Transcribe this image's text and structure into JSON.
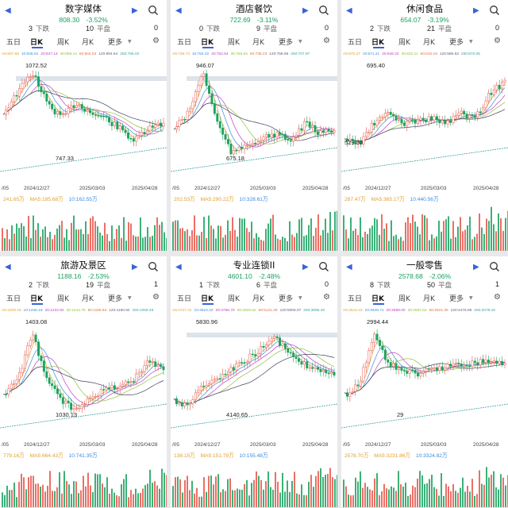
{
  "colors": {
    "up": "#e8574b",
    "down": "#1aa260",
    "ma5": "#e0a030",
    "ma10": "#3a8ce0",
    "ma20": "#c040c0",
    "ma30": "#90c040",
    "ma60": "#e07040",
    "ma120": "#606080",
    "ma250": "#40a0a0",
    "accent": "#3a62d8"
  },
  "panels": [
    {
      "name": "数字媒体",
      "price": "808.30",
      "change": "-3.52%",
      "down_count": "3",
      "down_label": "下跌",
      "flat_count": "10",
      "flat_label": "平盘",
      "right_count": "0",
      "tabs": [
        "五日",
        "日K",
        "周K",
        "月K",
        "更多"
      ],
      "active_tab": "日K",
      "ma_values": [
        "A5:837.68",
        "10:846.04",
        "20:847.13",
        "30:868.14",
        "60:904.53",
        "120:894.64",
        "250:765.02"
      ],
      "dates": [
        "/05",
        "2024/12/27",
        "2025/03/03",
        "2025/04/28"
      ],
      "vol_legend": [
        "241.65万",
        "MA5:185.68万",
        "10:162.55万"
      ],
      "high_label": "1072.52",
      "low_label": "747.33"
    },
    {
      "name": "酒店餐饮",
      "price": "722.69",
      "change": "-3.11%",
      "down_count": "0",
      "down_label": "下跌",
      "flat_count": "9",
      "flat_label": "平盘",
      "right_count": "0",
      "tabs": [
        "五日",
        "日K",
        "周K",
        "月K",
        "更多"
      ],
      "active_tab": "日K",
      "ma_values": [
        "A5:748.73",
        "10:762.22",
        "20:752.54",
        "30:756.63",
        "60:738.23",
        "120:758.96",
        "250:707.87"
      ],
      "dates": [
        "/05",
        "2024/12/27",
        "2025/03/03",
        "2025/04/28"
      ],
      "vol_legend": [
        "202.53万",
        "MA5:290.22万",
        "10:328.61万"
      ],
      "high_label": "946.07",
      "low_label": "675.18"
    },
    {
      "name": "休闲食品",
      "price": "654.07",
      "change": "-3.19%",
      "down_count": "2",
      "down_label": "下跌",
      "flat_count": "21",
      "flat_label": "平盘",
      "right_count": "0",
      "tabs": [
        "五日",
        "日K",
        "周K",
        "月K",
        "更多"
      ],
      "active_tab": "日K",
      "ma_values": [
        "A5:670.27",
        "10:671.21",
        "20:646.22",
        "30:632.11",
        "60:610.18",
        "120:586.63",
        "250:570.05"
      ],
      "dates": [
        "/05",
        "2024/12/27",
        "2025/03/03",
        "2025/04/28"
      ],
      "vol_legend": [
        "287.47万",
        "MA5:365.17万",
        "10:440.56万"
      ],
      "high_label": "695.40",
      "low_label": "529.30"
    },
    {
      "name": "旅游及景区",
      "price": "1188.16",
      "change": "-2.53%",
      "down_count": "2",
      "down_label": "下跌",
      "flat_count": "19",
      "flat_label": "平盘",
      "right_count": "1",
      "tabs": [
        "五日",
        "日K",
        "周K",
        "月K",
        "更多"
      ],
      "active_tab": "日K",
      "ma_values": [
        "A5:1209.19",
        "10:1236.19",
        "20:1222.62",
        "30:1212.75",
        "60:1166.84",
        "120:1160.82",
        "250:1059.48"
      ],
      "dates": [
        "/05",
        "2024/12/27",
        "2025/03/03",
        "2025/04/28"
      ],
      "vol_legend": [
        "779.16万",
        "MA5:664.43万",
        "10:741.35万"
      ],
      "high_label": "1403.08",
      "low_label": "1030.13"
    },
    {
      "name": "专业连锁II",
      "price": "4601.10",
      "change": "-2.48%",
      "down_count": "1",
      "down_label": "下跌",
      "flat_count": "6",
      "flat_label": "平盘",
      "right_count": "0",
      "tabs": [
        "五日",
        "日K",
        "周K",
        "月K",
        "更多"
      ],
      "active_tab": "日K",
      "ma_values": [
        "A5:4747.31",
        "10:4810.22",
        "20:4765.70",
        "30:4929.52",
        "60:5121.28",
        "120:5006.07",
        "250:3895.49"
      ],
      "dates": [
        "/05",
        "2024/12/27",
        "2025/03/03",
        "2025/04/28"
      ],
      "vol_legend": [
        "138.15万",
        "MA5:151.79万",
        "10:155.48万"
      ],
      "high_label": "5830.96",
      "low_label": "4140.65"
    },
    {
      "name": "一般零售",
      "price": "2578.68",
      "change": "-2.06%",
      "down_count": "8",
      "down_label": "下跌",
      "flat_count": "50",
      "flat_label": "平盘",
      "right_count": "1",
      "tabs": [
        "五日",
        "日K",
        "周K",
        "月K",
        "更多"
      ],
      "active_tab": "日K",
      "ma_values": [
        "A5:2644.43",
        "10:2649.71",
        "20:2588.00",
        "30:2567.62",
        "60:2521.30",
        "120:2476.59",
        "250:2078.18"
      ],
      "dates": [
        "/05",
        "2024/12/27",
        "2025/03/03",
        "2025/04/28"
      ],
      "vol_legend": [
        "2578.70万",
        "MA5:3231.86万",
        "10:3324.82万"
      ],
      "high_label": "2994.44",
      "low_label": "29"
    }
  ]
}
